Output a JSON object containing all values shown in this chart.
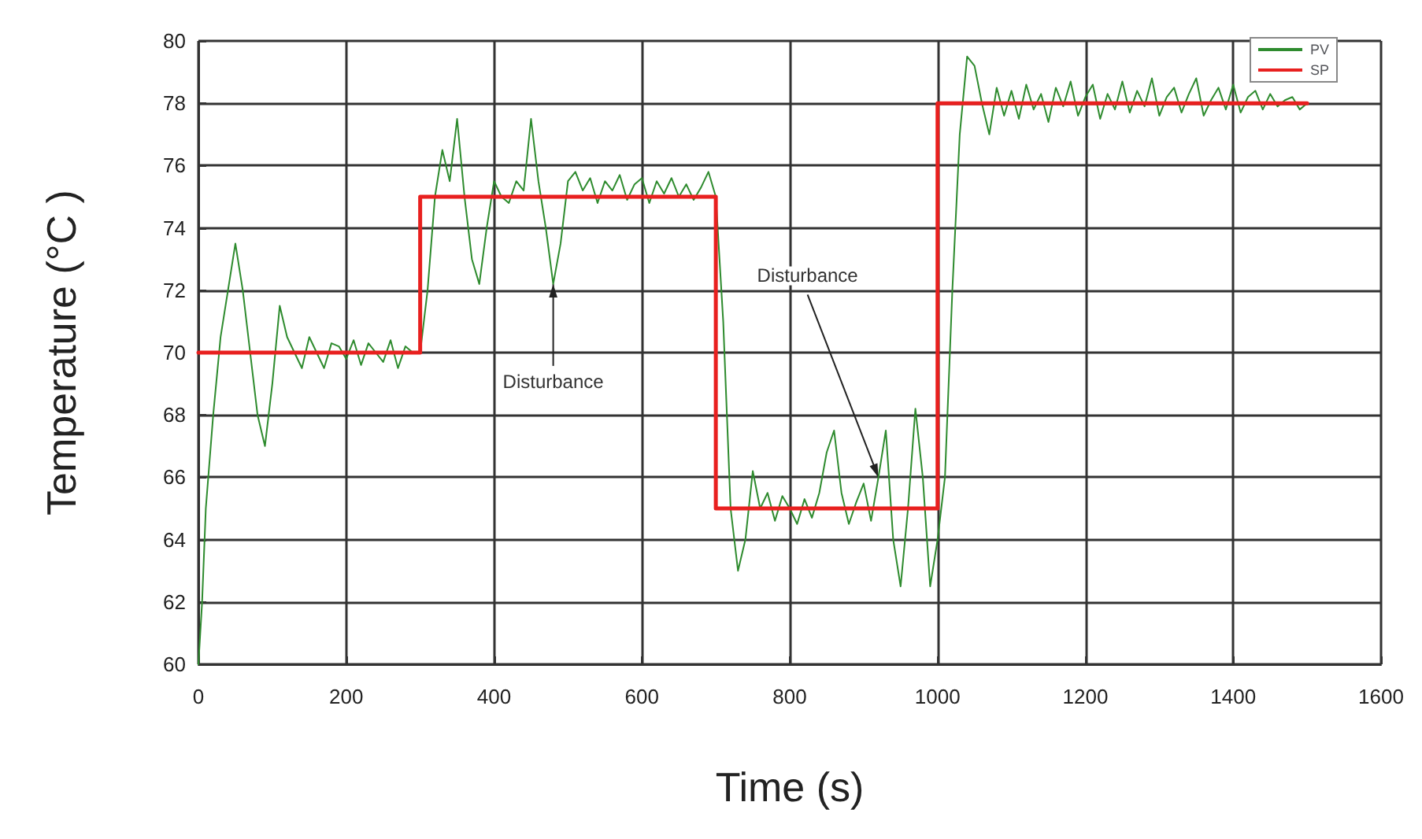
{
  "chart_data": {
    "type": "line",
    "xlabel": "Time (s)",
    "ylabel": "Temperature (°C )",
    "xlim": [
      0,
      1600
    ],
    "xticks": [
      0,
      200,
      400,
      600,
      800,
      1000,
      1200,
      1400,
      1600
    ],
    "ylim": [
      60,
      80
    ],
    "yticks": [
      60,
      62,
      64,
      66,
      68,
      70,
      72,
      74,
      76,
      78,
      80
    ],
    "grid": true,
    "legend": "top right",
    "marker": "none",
    "line_style": "solid",
    "annotations": [
      {
        "text": "Disturbance",
        "x": 480,
        "y": 72.2
      },
      {
        "text": "Disturbance",
        "x": 920,
        "y": 66
      }
    ],
    "series": [
      {
        "name": "PV",
        "color": "#2e8b2e",
        "x": [
          0,
          5,
          10,
          20,
          30,
          40,
          50,
          60,
          70,
          80,
          90,
          100,
          110,
          120,
          130,
          140,
          150,
          160,
          170,
          180,
          190,
          200,
          210,
          220,
          230,
          240,
          250,
          260,
          270,
          280,
          290,
          300,
          310,
          320,
          330,
          340,
          350,
          360,
          370,
          380,
          390,
          400,
          410,
          420,
          430,
          440,
          450,
          460,
          470,
          480,
          490,
          500,
          510,
          520,
          530,
          540,
          550,
          560,
          570,
          580,
          590,
          600,
          610,
          620,
          630,
          640,
          650,
          660,
          670,
          680,
          690,
          700,
          710,
          720,
          730,
          740,
          750,
          760,
          770,
          780,
          790,
          800,
          810,
          820,
          830,
          840,
          850,
          860,
          870,
          880,
          890,
          900,
          910,
          920,
          930,
          940,
          950,
          960,
          970,
          980,
          990,
          1000,
          1010,
          1020,
          1030,
          1040,
          1050,
          1060,
          1070,
          1080,
          1090,
          1100,
          1110,
          1120,
          1130,
          1140,
          1150,
          1160,
          1170,
          1180,
          1190,
          1200,
          1210,
          1220,
          1230,
          1240,
          1250,
          1260,
          1270,
          1280,
          1290,
          1300,
          1310,
          1320,
          1330,
          1340,
          1350,
          1360,
          1370,
          1380,
          1390,
          1400,
          1410,
          1420,
          1430,
          1440,
          1450,
          1460,
          1470,
          1480,
          1490,
          1500
        ],
        "values": [
          60,
          62,
          65,
          68,
          70.5,
          72,
          73.5,
          72,
          70,
          68,
          67,
          69,
          71.5,
          70.5,
          70,
          69.5,
          70.5,
          70,
          69.5,
          70.3,
          70.2,
          69.8,
          70.4,
          69.6,
          70.3,
          70,
          69.7,
          70.4,
          69.5,
          70.2,
          70,
          70,
          72,
          75,
          76.5,
          75.5,
          77.5,
          75,
          73,
          72.2,
          74,
          75.5,
          75,
          74.8,
          75.5,
          75.2,
          77.5,
          75.5,
          74,
          72.2,
          73.5,
          75.5,
          75.8,
          75.2,
          75.6,
          74.8,
          75.5,
          75.2,
          75.7,
          74.9,
          75.4,
          75.6,
          74.8,
          75.5,
          75.1,
          75.6,
          75,
          75.4,
          74.9,
          75.3,
          75.8,
          75,
          71,
          65,
          63,
          64,
          66.2,
          65,
          65.5,
          64.6,
          65.4,
          65,
          64.5,
          65.3,
          64.7,
          65.5,
          66.8,
          67.5,
          65.5,
          64.5,
          65.2,
          65.8,
          64.6,
          66,
          67.5,
          64,
          62.5,
          65,
          68.2,
          66,
          62.5,
          64,
          66,
          72,
          77,
          79.5,
          79.2,
          78,
          77,
          78.5,
          77.6,
          78.4,
          77.5,
          78.6,
          77.8,
          78.3,
          77.4,
          78.5,
          77.9,
          78.7,
          77.6,
          78.2,
          78.6,
          77.5,
          78.3,
          77.8,
          78.7,
          77.7,
          78.4,
          77.9,
          78.8,
          77.6,
          78.2,
          78.5,
          77.7,
          78.3,
          78.8,
          77.6,
          78.1,
          78.5,
          77.8,
          78.6,
          77.7,
          78.2,
          78.4,
          77.8,
          78.3,
          77.9,
          78.1,
          78.2,
          77.8,
          78
        ]
      },
      {
        "name": "SP",
        "color": "#e8201f",
        "x": [
          0,
          300,
          300,
          700,
          700,
          1000,
          1000,
          1500
        ],
        "values": [
          70,
          70,
          75,
          75,
          65,
          65,
          78,
          78
        ]
      }
    ]
  }
}
